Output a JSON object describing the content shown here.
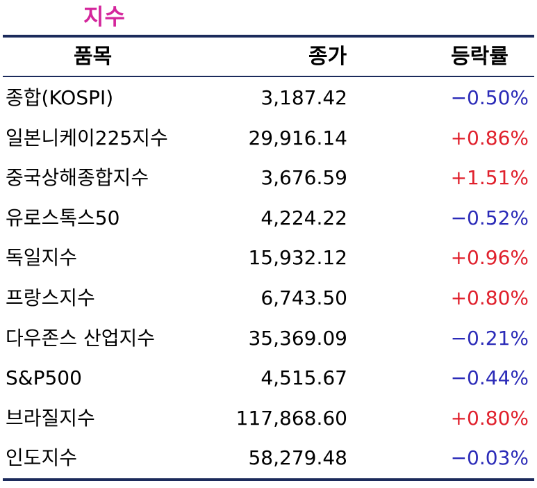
{
  "title": "지수",
  "headers": {
    "name": "품목",
    "close": "종가",
    "change": "등락률"
  },
  "colors": {
    "title": "#d4269c",
    "rule": "#1b2a5b",
    "up": "#e0202c",
    "down": "#2b2bb8"
  },
  "rows": [
    {
      "name": "종합(KOSPI)",
      "close": "3,187.42",
      "change": "−0.50%",
      "direction": "down"
    },
    {
      "name": "일본니케이225지수",
      "close": "29,916.14",
      "change": "+0.86%",
      "direction": "up"
    },
    {
      "name": "중국상해종합지수",
      "close": "3,676.59",
      "change": "+1.51%",
      "direction": "up"
    },
    {
      "name": "유로스톡스50",
      "close": "4,224.22",
      "change": "−0.52%",
      "direction": "down"
    },
    {
      "name": "독일지수",
      "close": "15,932.12",
      "change": "+0.96%",
      "direction": "up"
    },
    {
      "name": "프랑스지수",
      "close": "6,743.50",
      "change": "+0.80%",
      "direction": "up"
    },
    {
      "name": "다우존스 산업지수",
      "close": "35,369.09",
      "change": "−0.21%",
      "direction": "down"
    },
    {
      "name": "S&P500",
      "close": "4,515.67",
      "change": "−0.44%",
      "direction": "down"
    },
    {
      "name": "브라질지수",
      "close": "117,868.60",
      "change": "+0.80%",
      "direction": "up"
    },
    {
      "name": "인도지수",
      "close": "58,279.48",
      "change": "−0.03%",
      "direction": "down"
    }
  ]
}
